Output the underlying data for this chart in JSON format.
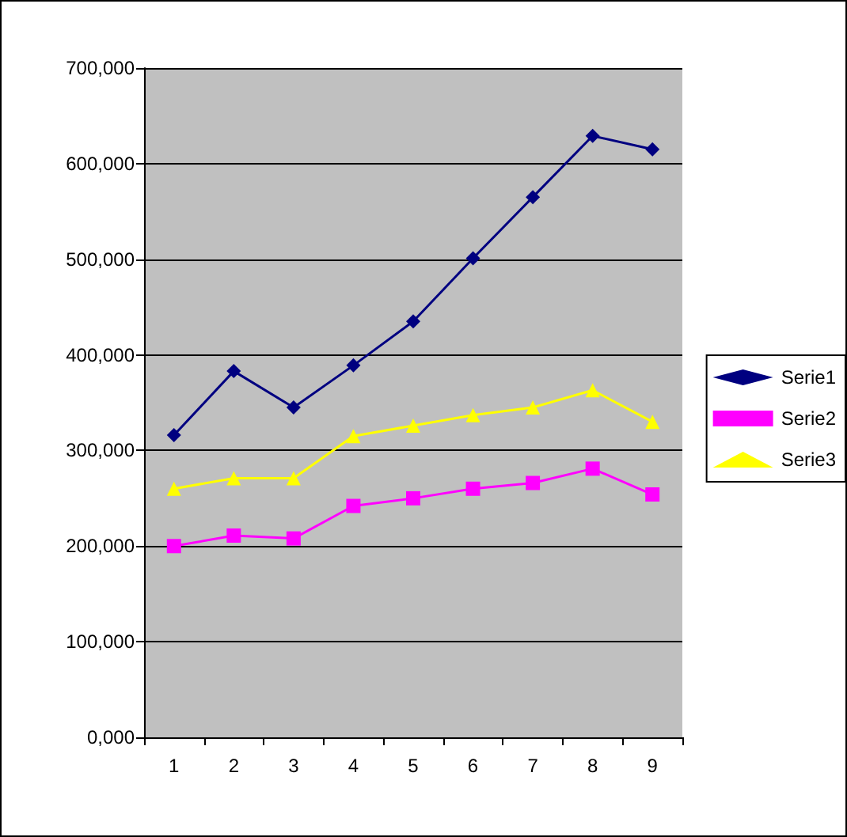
{
  "chart_data": {
    "type": "line",
    "categories": [
      "1",
      "2",
      "3",
      "4",
      "5",
      "6",
      "7",
      "8",
      "9"
    ],
    "series": [
      {
        "name": "Serie1",
        "color": "#000080",
        "marker": "diamond",
        "values": [
          316000,
          383000,
          345000,
          389000,
          435000,
          501000,
          565000,
          629000,
          615000
        ]
      },
      {
        "name": "Serie2",
        "color": "#ff00ff",
        "marker": "square",
        "values": [
          200000,
          211000,
          208000,
          242000,
          250000,
          260000,
          266000,
          281000,
          254000
        ]
      },
      {
        "name": "Serie3",
        "color": "#ffff00",
        "marker": "triangle",
        "values": [
          260000,
          271000,
          271000,
          315000,
          326000,
          337000,
          345000,
          363000,
          330000
        ]
      }
    ],
    "ylim": [
      0,
      700000
    ],
    "yticks": [
      {
        "value": 0,
        "label": "0,000"
      },
      {
        "value": 100000,
        "label": "100,000"
      },
      {
        "value": 200000,
        "label": "200,000"
      },
      {
        "value": 300000,
        "label": "300,000"
      },
      {
        "value": 400000,
        "label": "400,000"
      },
      {
        "value": 500000,
        "label": "500,000"
      },
      {
        "value": 600000,
        "label": "600,000"
      },
      {
        "value": 700000,
        "label": "700,000"
      }
    ],
    "grid": "y",
    "legend": "right",
    "line_style": "solid"
  }
}
